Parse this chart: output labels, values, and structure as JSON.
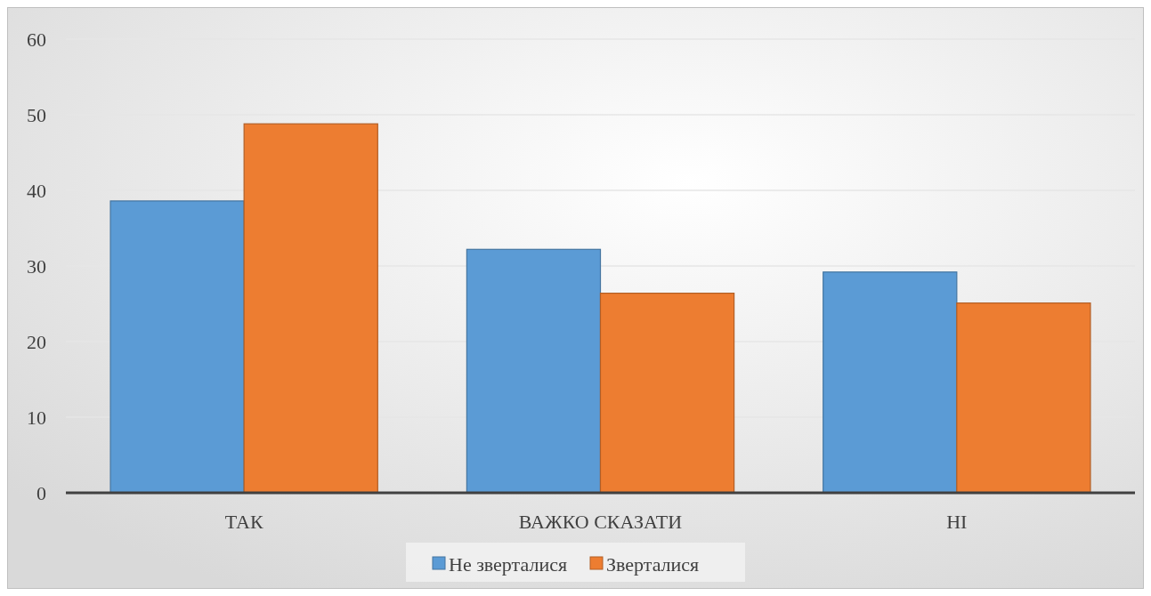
{
  "chart_data": {
    "type": "bar",
    "categories": [
      "ТАК",
      "ВАЖКО СКАЗАТИ",
      "НІ"
    ],
    "series": [
      {
        "name": "Не зверталися",
        "color": "#5b9bd5",
        "values": [
          38.6,
          32.2,
          29.2
        ]
      },
      {
        "name": "Зверталися",
        "color": "#ed7d31",
        "values": [
          48.8,
          26.4,
          25.1
        ]
      }
    ],
    "ylim": [
      0,
      60
    ],
    "yticks": [
      0,
      10,
      20,
      30,
      40,
      50,
      60
    ],
    "grid": "y",
    "legend": "bottom"
  }
}
